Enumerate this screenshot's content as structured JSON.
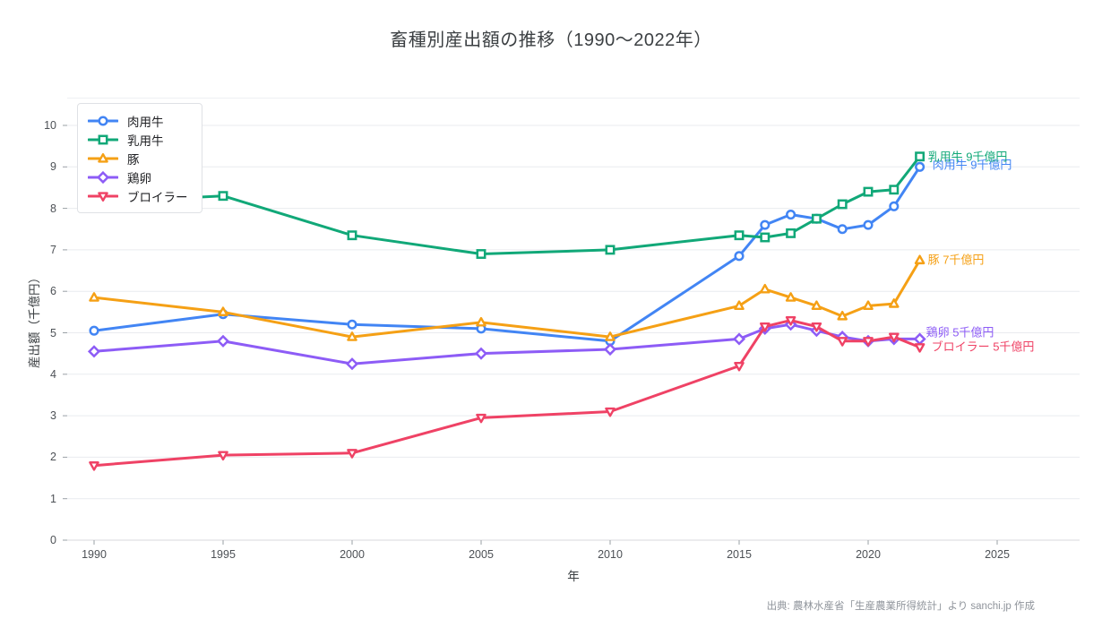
{
  "title": "畜種別産出額の推移（1990〜2022年）",
  "source": "出典: 農林水産省「生産農業所得統計」より sanchi.jp 作成",
  "chart_data": {
    "type": "line",
    "title": "畜種別産出額の推移（1990〜2022年）",
    "xlabel": "年",
    "ylabel": "産出額（千億円）",
    "unit": "千億円",
    "x": [
      1990,
      1995,
      2000,
      2005,
      2010,
      2015,
      2016,
      2017,
      2018,
      2019,
      2020,
      2021,
      2022
    ],
    "x_tick_years": [
      1990,
      1995,
      2000,
      2005,
      2010,
      2015,
      2020,
      2025
    ],
    "y_tick_values": [
      0,
      1,
      2,
      3,
      4,
      5,
      6,
      7,
      8,
      9,
      10
    ],
    "xlim": [
      1989,
      2028.2
    ],
    "ylim": [
      0,
      10.6
    ],
    "grid": "horizontal",
    "legend_position": "top-left",
    "series": [
      {
        "name": "肉用牛",
        "color": "#4285f4",
        "marker": "circle",
        "values": [
          5.05,
          5.45,
          5.2,
          5.1,
          4.8,
          6.85,
          7.6,
          7.85,
          7.75,
          7.5,
          7.6,
          8.05,
          9.0
        ],
        "annotation": "肉用牛 9千億円"
      },
      {
        "name": "乳用牛",
        "color": "#11a878",
        "marker": "square",
        "values": [
          8.15,
          8.3,
          7.35,
          6.9,
          7.0,
          7.35,
          7.3,
          7.4,
          7.75,
          8.1,
          8.4,
          8.45,
          9.25
        ],
        "annotation": "乳用牛 9千億円"
      },
      {
        "name": "豚",
        "color": "#f5a015",
        "marker": "triangle-up",
        "values": [
          5.85,
          5.5,
          4.9,
          5.25,
          4.9,
          5.65,
          6.05,
          5.85,
          5.65,
          5.4,
          5.65,
          5.7,
          6.75
        ],
        "annotation": "豚 7千億円"
      },
      {
        "name": "鶏卵",
        "color": "#8d5cf6",
        "marker": "diamond",
        "values": [
          4.55,
          4.8,
          4.25,
          4.5,
          4.6,
          4.85,
          5.1,
          5.2,
          5.05,
          4.9,
          4.8,
          4.85,
          4.85
        ],
        "annotation": "鶏卵 5千億円"
      },
      {
        "name": "ブロイラー",
        "color": "#ef4265",
        "marker": "triangle-down",
        "values": [
          1.8,
          2.05,
          2.1,
          2.95,
          3.1,
          4.2,
          5.15,
          5.3,
          5.15,
          4.8,
          4.8,
          4.9,
          4.65
        ],
        "annotation": "ブロイラー 5千億円"
      }
    ]
  }
}
